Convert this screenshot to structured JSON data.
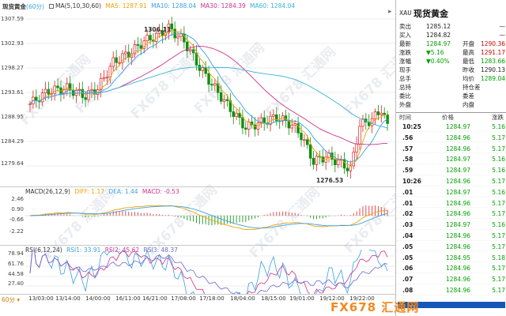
{
  "title": "现货黄金",
  "period": "60分",
  "ma": {
    "label": "MA(5,10,30,60)",
    "ma5": "MA5: 1287.91",
    "ma10": "MA10: 1288.04",
    "ma30": "MA30: 1284.39",
    "ma60": "MA60: 1284.04",
    "colors": {
      "ma5": "#f0a000",
      "ma10": "#3aa0e0",
      "ma30": "#d0328c",
      "ma60": "#39b4d8"
    }
  },
  "price_axis": [
    "1307.59",
    "1302.93",
    "1298.27",
    "1293.61",
    "1288.95",
    "1284.29",
    "1279.64"
  ],
  "annotations": {
    "high": "1306.11",
    "low": "1276.53"
  },
  "macd": {
    "label": "MACD(26,12,9)",
    "diff": "DIFF: 1.17",
    "dea": "DEA: 1.44",
    "macd": "MACD: -0.53",
    "axis": [
      "2.46",
      "0.90",
      "-0.66",
      "-2.22"
    ]
  },
  "rsi": {
    "label": "RSI(6,12,24)",
    "rsi1": "RSI1: 33.91",
    "rsi2": "RSI2: 45.62",
    "rsi3": "RSI3: 48.37",
    "axis": [
      "78.94",
      "61.76",
      "44.58",
      "27.40"
    ]
  },
  "x_axis": [
    "13/03:00",
    "13/14:00",
    "14/00:00",
    "16/11:00",
    "16/21:00",
    "17/08:00",
    "17/18:00",
    "18/04:00",
    "18/15:00",
    "19/01:00",
    "19/12:00",
    "19/22:00"
  ],
  "panel": {
    "symbol": "XAU",
    "name": "现货黄金",
    "close_icon": "×",
    "quotes": [
      {
        "l1": "卖出",
        "v1": "1285.12",
        "c1": "gr",
        "l2": "",
        "v2": "—",
        "c2": "gr"
      },
      {
        "l1": "买入",
        "v1": "1284.82",
        "c1": "gr",
        "l2": "",
        "v2": "—",
        "c2": "gr"
      },
      {
        "l1": "最新",
        "v1": "1284.97",
        "c1": "dn",
        "l2": "开盘",
        "v2": "1290.36",
        "c2": "up"
      },
      {
        "l1": "涨跌",
        "v1": "▼5.16",
        "c1": "dn",
        "l2": "最高",
        "v2": "1291.17",
        "c2": "up"
      },
      {
        "l1": "涨幅",
        "v1": "▼0.40%",
        "c1": "dn",
        "l2": "最低",
        "v2": "1283.66",
        "c2": "dn"
      },
      {
        "l1": "现手",
        "v1": "",
        "c1": "gr",
        "l2": "昨收",
        "v2": "1290.13",
        "c2": "gr"
      },
      {
        "l1": "总手",
        "v1": "",
        "c1": "gr",
        "l2": "均价",
        "v2": "1289.04",
        "c2": "dn"
      },
      {
        "l1": "总持",
        "v1": "",
        "c1": "gr",
        "l2": "持仓差",
        "v2": "",
        "c2": "gr"
      },
      {
        "l1": "委比",
        "v1": "",
        "c1": "gr",
        "l2": "委差",
        "v2": "",
        "c2": "gr"
      },
      {
        "l1": "外盘",
        "v1": "",
        "c1": "gr",
        "l2": "内盘",
        "v2": "",
        "c2": "gr"
      }
    ],
    "trade_headers": [
      "时间",
      "价格",
      "涨跌"
    ],
    "trades": [
      {
        "t": "10:25",
        "p": "1284.97",
        "c": "5.16"
      },
      {
        "t": ".56",
        "p": "1284.96",
        "c": "5.17"
      },
      {
        "t": ".57",
        "p": "1284.96",
        "c": "5.17"
      },
      {
        "t": ".58",
        "p": "1284.97",
        "c": "5.16"
      },
      {
        "t": ".59",
        "p": "1284.97",
        "c": "5.16"
      },
      {
        "t": "10:26",
        "p": "1284.96",
        "c": "5.17"
      },
      {
        "t": ".01",
        "p": "1284.97",
        "c": "5.16"
      },
      {
        "t": ".01",
        "p": "1284.96",
        "c": "5.17"
      },
      {
        "t": ".02",
        "p": "1284.96",
        "c": "5.17"
      },
      {
        "t": ".03",
        "p": "1284.97",
        "c": "5.16"
      },
      {
        "t": ".04",
        "p": "1284.96",
        "c": "5.17"
      },
      {
        "t": ".05",
        "p": "1284.96",
        "c": "5.17"
      },
      {
        "t": ".05",
        "p": "1284.95",
        "c": "5.18"
      },
      {
        "t": ".06",
        "p": "1284.96",
        "c": "5.17"
      },
      {
        "t": ".07",
        "p": "1284.96",
        "c": "5.17"
      },
      {
        "t": ".08",
        "p": "1284.96",
        "c": "5.17"
      }
    ]
  },
  "watermark": {
    "text": "FX678 汇通网"
  },
  "logo": {
    "text": "FX678 汇通网"
  }
}
